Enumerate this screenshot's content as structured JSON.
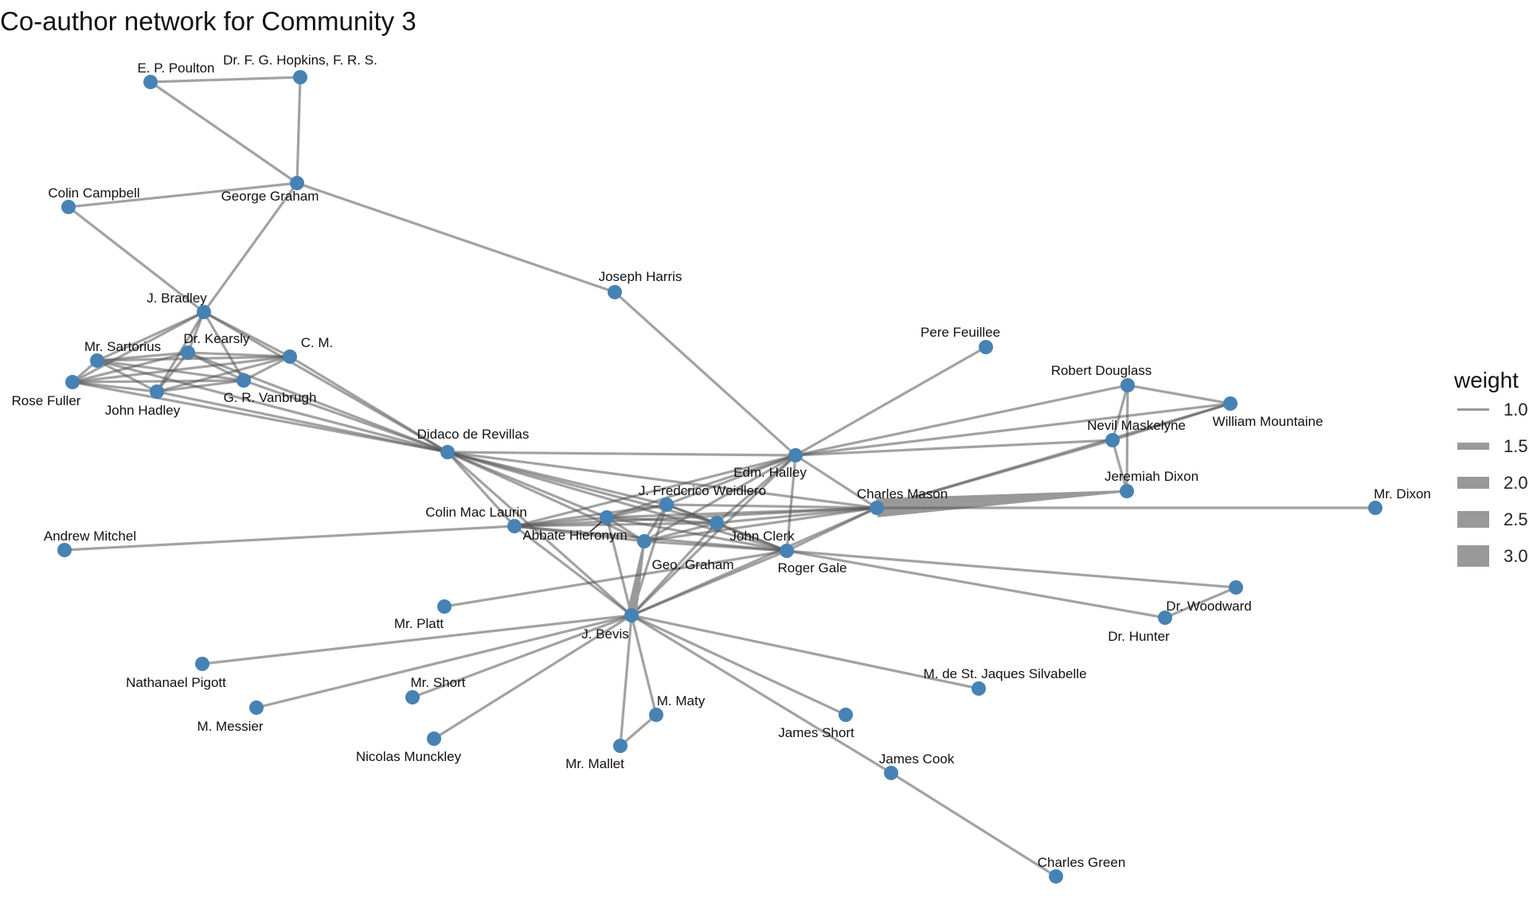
{
  "title": "Co-author network for Community 3",
  "legend": {
    "title": "weight",
    "items": [
      {
        "label": "1.0",
        "weight": 1.0
      },
      {
        "label": "1.5",
        "weight": 1.5
      },
      {
        "label": "2.0",
        "weight": 2.0
      },
      {
        "label": "2.5",
        "weight": 2.5
      },
      {
        "label": "3.0",
        "weight": 3.0
      }
    ]
  },
  "colors": {
    "node": "#4682B4",
    "edge": "#999999",
    "background": "#ffffff"
  },
  "nodes": [
    {
      "id": "poulton",
      "label": "E. P. Poulton"
    },
    {
      "id": "hopkins",
      "label": "Dr. F. G. Hopkins, F. R. S."
    },
    {
      "id": "campbell",
      "label": "Colin Campbell"
    },
    {
      "id": "graham",
      "label": "George Graham"
    },
    {
      "id": "harris",
      "label": "Joseph Harris"
    },
    {
      "id": "bradley",
      "label": "J. Bradley"
    },
    {
      "id": "sartorius",
      "label": "Mr. Sartorius"
    },
    {
      "id": "kearsly",
      "label": "Dr. Kearsly"
    },
    {
      "id": "cm",
      "label": "C. M."
    },
    {
      "id": "fuller",
      "label": "Rose Fuller"
    },
    {
      "id": "hadley",
      "label": "John Hadley"
    },
    {
      "id": "vanbrugh",
      "label": "G. R. Vanbrugh"
    },
    {
      "id": "revillas",
      "label": "Didaco de Revillas"
    },
    {
      "id": "feuillee",
      "label": "Pere Feuillee"
    },
    {
      "id": "douglass",
      "label": "Robert Douglass"
    },
    {
      "id": "mountaine",
      "label": "William Mountaine"
    },
    {
      "id": "maskelyne",
      "label": "Nevil Maskelyne"
    },
    {
      "id": "halley",
      "label": "Edm. Halley"
    },
    {
      "id": "jdixon",
      "label": "Jeremiah Dixon"
    },
    {
      "id": "weidlero",
      "label": "J. Fredcrico Weidlero"
    },
    {
      "id": "mason",
      "label": "Charles Mason"
    },
    {
      "id": "mrdixon",
      "label": "Mr. Dixon"
    },
    {
      "id": "maclaurin",
      "label": "Colin Mac Laurin"
    },
    {
      "id": "hieronym",
      "label": "Abbate Hieronym"
    },
    {
      "id": "clerk",
      "label": "John Clerk"
    },
    {
      "id": "andrew",
      "label": "Andrew Mitchel"
    },
    {
      "id": "geograham",
      "label": "Geo. Graham"
    },
    {
      "id": "gale",
      "label": "Roger Gale"
    },
    {
      "id": "platt",
      "label": "Mr. Platt"
    },
    {
      "id": "woodward",
      "label": "Dr. Woodward"
    },
    {
      "id": "hunter",
      "label": "Dr. Hunter"
    },
    {
      "id": "bevis",
      "label": "J. Bevis"
    },
    {
      "id": "pigott",
      "label": "Nathanael Pigott"
    },
    {
      "id": "silvabelle",
      "label": "M. de St. Jaques Silvabelle"
    },
    {
      "id": "mrshort",
      "label": "Mr. Short"
    },
    {
      "id": "maty",
      "label": "M. Maty"
    },
    {
      "id": "messier",
      "label": "M. Messier"
    },
    {
      "id": "jshort",
      "label": "James Short"
    },
    {
      "id": "munckley",
      "label": "Nicolas Munckley"
    },
    {
      "id": "mallet",
      "label": "Mr. Mallet"
    },
    {
      "id": "cook",
      "label": "James Cook"
    },
    {
      "id": "green",
      "label": "Charles Green"
    }
  ],
  "edges": [
    {
      "source": "poulton",
      "target": "hopkins",
      "weight": 1
    },
    {
      "source": "poulton",
      "target": "graham",
      "weight": 1
    },
    {
      "source": "hopkins",
      "target": "graham",
      "weight": 1
    },
    {
      "source": "campbell",
      "target": "graham",
      "weight": 1
    },
    {
      "source": "campbell",
      "target": "bradley",
      "weight": 1
    },
    {
      "source": "graham",
      "target": "bradley",
      "weight": 1
    },
    {
      "source": "graham",
      "target": "harris",
      "weight": 1
    },
    {
      "source": "harris",
      "target": "halley",
      "weight": 1
    },
    {
      "source": "bradley",
      "target": "sartorius",
      "weight": 1
    },
    {
      "source": "bradley",
      "target": "kearsly",
      "weight": 1
    },
    {
      "source": "bradley",
      "target": "cm",
      "weight": 1
    },
    {
      "source": "bradley",
      "target": "fuller",
      "weight": 1
    },
    {
      "source": "bradley",
      "target": "hadley",
      "weight": 1
    },
    {
      "source": "bradley",
      "target": "vanbrugh",
      "weight": 1
    },
    {
      "source": "bradley",
      "target": "revillas",
      "weight": 1
    },
    {
      "source": "sartorius",
      "target": "kearsly",
      "weight": 1
    },
    {
      "source": "sartorius",
      "target": "cm",
      "weight": 1
    },
    {
      "source": "sartorius",
      "target": "fuller",
      "weight": 1
    },
    {
      "source": "sartorius",
      "target": "hadley",
      "weight": 1
    },
    {
      "source": "sartorius",
      "target": "vanbrugh",
      "weight": 1
    },
    {
      "source": "sartorius",
      "target": "revillas",
      "weight": 1
    },
    {
      "source": "kearsly",
      "target": "cm",
      "weight": 1
    },
    {
      "source": "kearsly",
      "target": "fuller",
      "weight": 1
    },
    {
      "source": "kearsly",
      "target": "hadley",
      "weight": 1
    },
    {
      "source": "kearsly",
      "target": "vanbrugh",
      "weight": 1
    },
    {
      "source": "kearsly",
      "target": "revillas",
      "weight": 1
    },
    {
      "source": "cm",
      "target": "fuller",
      "weight": 1
    },
    {
      "source": "cm",
      "target": "hadley",
      "weight": 1
    },
    {
      "source": "cm",
      "target": "vanbrugh",
      "weight": 1
    },
    {
      "source": "cm",
      "target": "revillas",
      "weight": 1
    },
    {
      "source": "fuller",
      "target": "hadley",
      "weight": 1
    },
    {
      "source": "fuller",
      "target": "vanbrugh",
      "weight": 1
    },
    {
      "source": "fuller",
      "target": "revillas",
      "weight": 1
    },
    {
      "source": "hadley",
      "target": "vanbrugh",
      "weight": 1
    },
    {
      "source": "hadley",
      "target": "revillas",
      "weight": 1
    },
    {
      "source": "vanbrugh",
      "target": "revillas",
      "weight": 1
    },
    {
      "source": "revillas",
      "target": "halley",
      "weight": 1
    },
    {
      "source": "revillas",
      "target": "maclaurin",
      "weight": 1
    },
    {
      "source": "revillas",
      "target": "hieronym",
      "weight": 1
    },
    {
      "source": "revillas",
      "target": "weidlero",
      "weight": 1
    },
    {
      "source": "revillas",
      "target": "clerk",
      "weight": 1
    },
    {
      "source": "revillas",
      "target": "geograham",
      "weight": 1
    },
    {
      "source": "revillas",
      "target": "gale",
      "weight": 1
    },
    {
      "source": "revillas",
      "target": "mason",
      "weight": 1
    },
    {
      "source": "revillas",
      "target": "bevis",
      "weight": 1
    },
    {
      "source": "feuillee",
      "target": "halley",
      "weight": 1
    },
    {
      "source": "douglass",
      "target": "mountaine",
      "weight": 1
    },
    {
      "source": "douglass",
      "target": "maskelyne",
      "weight": 1
    },
    {
      "source": "douglass",
      "target": "halley",
      "weight": 1
    },
    {
      "source": "douglass",
      "target": "jdixon",
      "weight": 1
    },
    {
      "source": "mountaine",
      "target": "maskelyne",
      "weight": 1
    },
    {
      "source": "mountaine",
      "target": "halley",
      "weight": 1
    },
    {
      "source": "mountaine",
      "target": "mason",
      "weight": 1
    },
    {
      "source": "maskelyne",
      "target": "halley",
      "weight": 1
    },
    {
      "source": "maskelyne",
      "target": "mason",
      "weight": 1
    },
    {
      "source": "maskelyne",
      "target": "jdixon",
      "weight": 1
    },
    {
      "source": "jdixon",
      "target": "mason",
      "weight": 3
    },
    {
      "source": "mason",
      "target": "mrdixon",
      "weight": 1
    },
    {
      "source": "mason",
      "target": "halley",
      "weight": 1
    },
    {
      "source": "mason",
      "target": "weidlero",
      "weight": 1
    },
    {
      "source": "mason",
      "target": "hieronym",
      "weight": 1
    },
    {
      "source": "mason",
      "target": "clerk",
      "weight": 1
    },
    {
      "source": "mason",
      "target": "gale",
      "weight": 1
    },
    {
      "source": "mason",
      "target": "geograham",
      "weight": 1
    },
    {
      "source": "mason",
      "target": "bevis",
      "weight": 1
    },
    {
      "source": "mason",
      "target": "maclaurin",
      "weight": 1
    },
    {
      "source": "halley",
      "target": "maclaurin",
      "weight": 1
    },
    {
      "source": "halley",
      "target": "hieronym",
      "weight": 1
    },
    {
      "source": "halley",
      "target": "weidlero",
      "weight": 1
    },
    {
      "source": "halley",
      "target": "clerk",
      "weight": 1
    },
    {
      "source": "halley",
      "target": "gale",
      "weight": 1
    },
    {
      "source": "halley",
      "target": "geograham",
      "weight": 1
    },
    {
      "source": "halley",
      "target": "bevis",
      "weight": 1
    },
    {
      "source": "maclaurin",
      "target": "hieronym",
      "weight": 1
    },
    {
      "source": "maclaurin",
      "target": "weidlero",
      "weight": 1
    },
    {
      "source": "maclaurin",
      "target": "clerk",
      "weight": 1
    },
    {
      "source": "maclaurin",
      "target": "geograham",
      "weight": 1
    },
    {
      "source": "maclaurin",
      "target": "gale",
      "weight": 1
    },
    {
      "source": "maclaurin",
      "target": "bevis",
      "weight": 1
    },
    {
      "source": "maclaurin",
      "target": "andrew",
      "weight": 1
    },
    {
      "source": "hieronym",
      "target": "weidlero",
      "weight": 1
    },
    {
      "source": "hieronym",
      "target": "clerk",
      "weight": 1
    },
    {
      "source": "hieronym",
      "target": "geograham",
      "weight": 1
    },
    {
      "source": "hieronym",
      "target": "gale",
      "weight": 1
    },
    {
      "source": "hieronym",
      "target": "bevis",
      "weight": 1
    },
    {
      "source": "weidlero",
      "target": "clerk",
      "weight": 1
    },
    {
      "source": "weidlero",
      "target": "geograham",
      "weight": 1
    },
    {
      "source": "weidlero",
      "target": "gale",
      "weight": 1
    },
    {
      "source": "weidlero",
      "target": "bevis",
      "weight": 1
    },
    {
      "source": "clerk",
      "target": "geograham",
      "weight": 1
    },
    {
      "source": "clerk",
      "target": "gale",
      "weight": 1
    },
    {
      "source": "clerk",
      "target": "bevis",
      "weight": 1
    },
    {
      "source": "geograham",
      "target": "gale",
      "weight": 1
    },
    {
      "source": "geograham",
      "target": "bevis",
      "weight": 2
    },
    {
      "source": "gale",
      "target": "bevis",
      "weight": 1
    },
    {
      "source": "gale",
      "target": "woodward",
      "weight": 1
    },
    {
      "source": "gale",
      "target": "hunter",
      "weight": 1
    },
    {
      "source": "woodward",
      "target": "hunter",
      "weight": 1
    },
    {
      "source": "platt",
      "target": "gale",
      "weight": 1
    },
    {
      "source": "bevis",
      "target": "pigott",
      "weight": 1
    },
    {
      "source": "bevis",
      "target": "messier",
      "weight": 1
    },
    {
      "source": "bevis",
      "target": "mrshort",
      "weight": 1
    },
    {
      "source": "bevis",
      "target": "munckley",
      "weight": 1
    },
    {
      "source": "bevis",
      "target": "mallet",
      "weight": 1
    },
    {
      "source": "bevis",
      "target": "maty",
      "weight": 1
    },
    {
      "source": "bevis",
      "target": "jshort",
      "weight": 1
    },
    {
      "source": "bevis",
      "target": "silvabelle",
      "weight": 1
    },
    {
      "source": "bevis",
      "target": "cook",
      "weight": 1
    },
    {
      "source": "maty",
      "target": "mallet",
      "weight": 1
    },
    {
      "source": "cook",
      "target": "green",
      "weight": 1
    }
  ]
}
